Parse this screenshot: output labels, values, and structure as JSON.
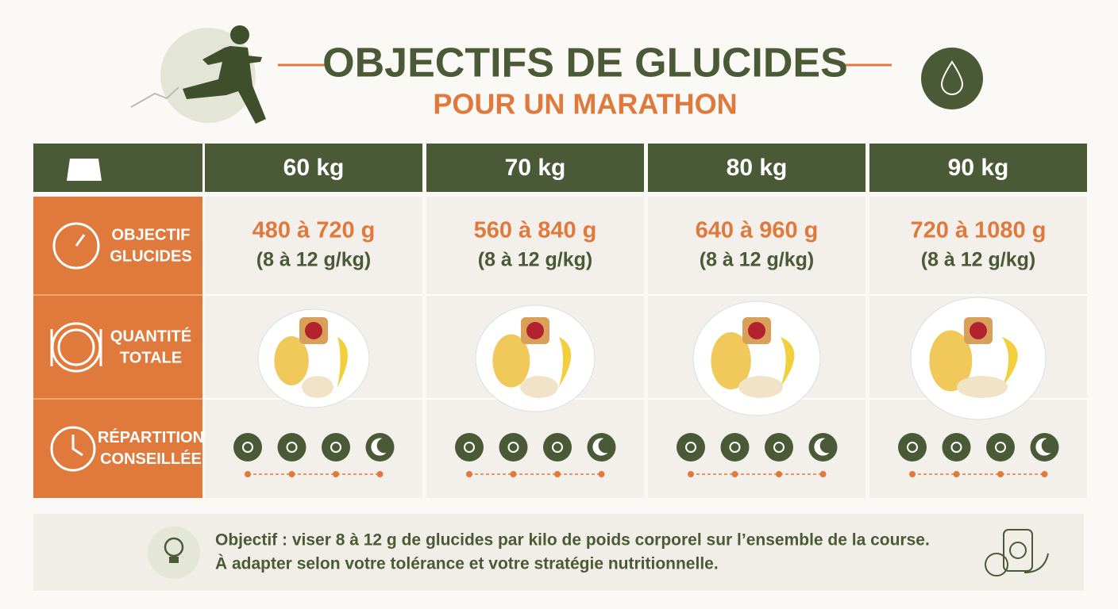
{
  "header": {
    "title": "OBJECTIFS DE GLUCIDES",
    "subtitle": "POUR UN MARATHON"
  },
  "table": {
    "columns": [
      "60 kg",
      "70 kg",
      "80 kg",
      "90 kg"
    ],
    "rows": [
      {
        "label": [
          "OBJECTIF",
          "GLUCIDES"
        ],
        "cells": [
          [
            "480 à 720 g",
            "(8 à 12 g/kg)"
          ],
          [
            "560 à 840 g",
            "(8 à 12 g/kg)"
          ],
          [
            "640 à 960 g",
            "(8 à 12 g/kg)"
          ],
          [
            "720 à 1080 g",
            "(8 à 12 g/kg)"
          ]
        ]
      },
      {
        "label": [
          "QUANTITÉ",
          "TOTALE"
        ]
      },
      {
        "label": [
          "RÉPARTITION",
          "CONSEILLÉE"
        ]
      }
    ]
  },
  "footer": {
    "lines": [
      "Objectif : viser 8 à 12 g de glucides par kilo de poids corporel sur l’ensemble de la course.",
      "À adapter selon votre tolérance et votre stratégie nutritionnelle."
    ]
  }
}
